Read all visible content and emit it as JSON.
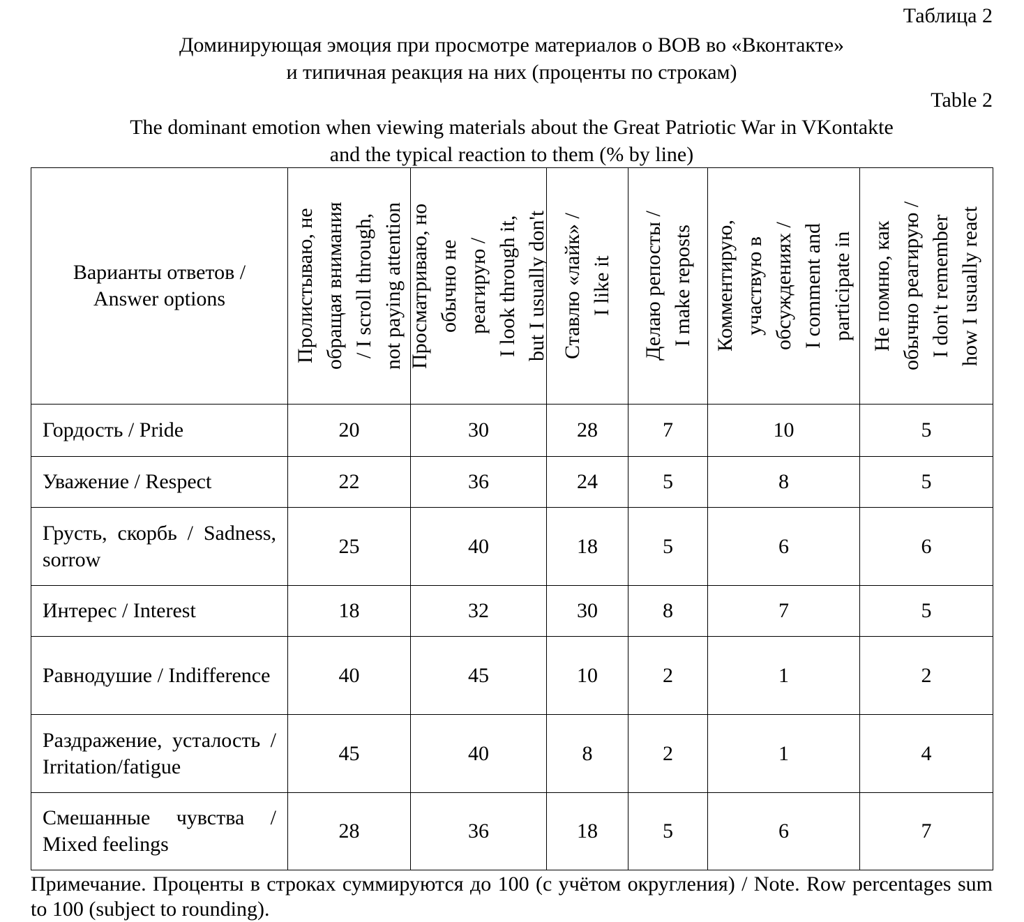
{
  "caption": {
    "label_ru": "Таблица 2",
    "title_ru": [
      "Доминирующая эмоция при просмотре материалов о ВОВ во «Вконтакте»",
      "и типичная реакция на них (проценты по строкам)"
    ],
    "label_en": "Table 2",
    "title_en": [
      "The dominant emotion when viewing materials about the Great Patriotic War in VKontakte",
      "and the typical reaction to them (% by line)"
    ]
  },
  "table": {
    "header": [
      [
        "Варианты ответов /",
        "Answer options"
      ],
      [
        "Пролистываю, не",
        "обращая внимания",
        "/ I scroll through,",
        "not paying attention"
      ],
      [
        "Просматриваю, но",
        "обычно не",
        "реагирую /",
        "I look through it,",
        "but I usually don't"
      ],
      [
        "Ставлю «лайк» /",
        "I like it"
      ],
      [
        "Делаю репосты /",
        "I make reposts"
      ],
      [
        "Комментирую,",
        "участвую в",
        "обсуждениях /",
        "I comment and",
        "participate in"
      ],
      [
        "Не помню, как",
        "обычно реагирую /",
        "I don't remember",
        "how I usually react"
      ]
    ],
    "rows": [
      [
        "Гордость / Pride",
        20,
        30,
        28,
        7,
        10,
        5
      ],
      [
        "Уважение / Respect",
        22,
        36,
        24,
        5,
        8,
        5
      ],
      [
        "Грусть, скорбь / Sadness, sorrow",
        25,
        40,
        18,
        5,
        6,
        6
      ],
      [
        "Интерес / Interest",
        18,
        32,
        30,
        8,
        7,
        5
      ],
      [
        "Равнодушие / Indifference",
        40,
        45,
        10,
        2,
        1,
        2
      ],
      [
        "Раздражение, усталость / Irritation/fatigue",
        45,
        40,
        8,
        2,
        1,
        4
      ],
      [
        "Смешанные чувства / Mixed feelings",
        28,
        36,
        18,
        5,
        6,
        7
      ]
    ]
  },
  "note": "Примечание. Проценты в строках суммируются до 100 (с учётом округления) / Note. Row percentages sum to 100 (subject to rounding)."
}
